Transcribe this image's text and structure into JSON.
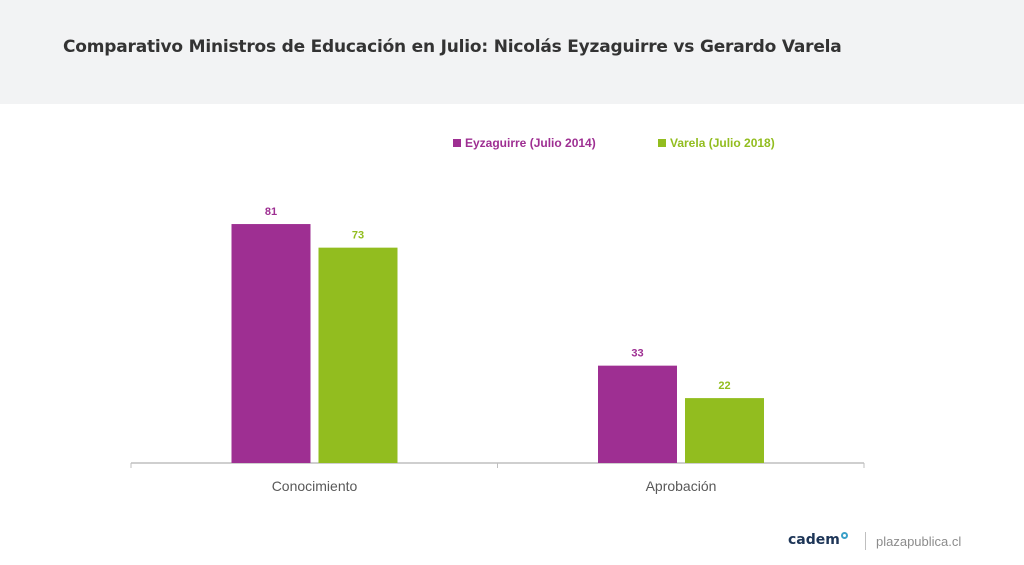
{
  "header": {
    "title": "Comparativo Ministros de Educación en Julio: Nicolás Eyzaguirre vs Gerardo Varela"
  },
  "chart_data": {
    "type": "bar",
    "categories": [
      "Conocimiento",
      "Aprobación"
    ],
    "series": [
      {
        "name": "Eyzaguirre (Julio 2014)",
        "values": [
          81,
          33
        ],
        "color": "#9e2f92"
      },
      {
        "name": "Varela (Julio 2018)",
        "values": [
          73,
          22
        ],
        "color": "#92bd1f"
      }
    ],
    "ylim": [
      0,
      100
    ],
    "grid": false,
    "legend": "top",
    "title": "",
    "xlabel": "",
    "ylabel": ""
  },
  "footer": {
    "brand": "cadem",
    "site": "plazapublica.cl"
  }
}
